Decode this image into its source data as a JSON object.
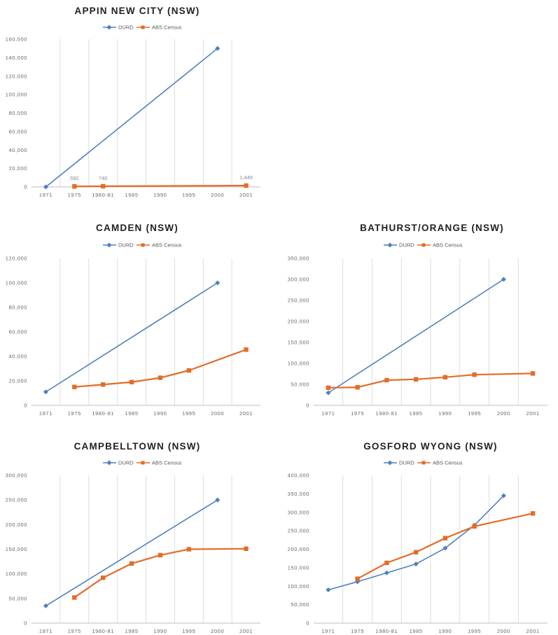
{
  "colors": {
    "durd": "#4f81bd",
    "abs": "#e46c28",
    "grid": "#d6d6d6",
    "axis": "#bfbfbf"
  },
  "chart_data": [
    {
      "type": "line",
      "title": "APPIN NEW CITY (NSW)",
      "categories": [
        "1971",
        "1975",
        "1980-81",
        "1985",
        "1990",
        "1995",
        "2000",
        "2001"
      ],
      "ylim": [
        0,
        160000
      ],
      "yticks": [
        "0",
        "20,000",
        "40,000",
        "60,000",
        "80,000",
        "100,000",
        "120,000",
        "140,000",
        "160,000"
      ],
      "legend": "top",
      "grid": "vertical",
      "series": [
        {
          "name": "DURD",
          "marker": "diamond",
          "values": [
            0,
            null,
            null,
            null,
            null,
            null,
            150000,
            null
          ]
        },
        {
          "name": "ABS Census",
          "marker": "square",
          "values": [
            null,
            592,
            740,
            null,
            null,
            null,
            null,
            1449
          ]
        }
      ],
      "data_labels": [
        {
          "series": 1,
          "index": 1,
          "text": "592"
        },
        {
          "series": 1,
          "index": 2,
          "text": "740"
        },
        {
          "series": 1,
          "index": 7,
          "text": "1,449"
        }
      ]
    },
    {
      "type": "line",
      "title": "CAMDEN (NSW)",
      "categories": [
        "1971",
        "1975",
        "1980-81",
        "1985",
        "1990",
        "1995",
        "2000",
        "2001"
      ],
      "ylim": [
        0,
        120000
      ],
      "yticks": [
        "0",
        "20,000",
        "40,000",
        "60,000",
        "80,000",
        "100,000",
        "120,000"
      ],
      "legend": "top",
      "grid": "vertical",
      "series": [
        {
          "name": "DURD",
          "marker": "diamond",
          "values": [
            11000,
            null,
            null,
            null,
            null,
            null,
            100000,
            null
          ]
        },
        {
          "name": "ABS Census",
          "marker": "square",
          "values": [
            null,
            15000,
            17000,
            19000,
            22500,
            28500,
            null,
            45500
          ]
        }
      ]
    },
    {
      "type": "line",
      "title": "BATHURST/ORANGE (NSW)",
      "categories": [
        "1971",
        "1975",
        "1980-81",
        "1985",
        "1990",
        "1995",
        "2000",
        "2001"
      ],
      "ylim": [
        0,
        350000
      ],
      "yticks": [
        "0",
        "50,000",
        "100,000",
        "150,000",
        "200,000",
        "250,000",
        "300,000",
        "350,000"
      ],
      "legend": "top",
      "grid": "vertical",
      "series": [
        {
          "name": "DURD",
          "marker": "diamond",
          "values": [
            30000,
            null,
            null,
            null,
            null,
            null,
            300000,
            null
          ]
        },
        {
          "name": "ABS Census",
          "marker": "square",
          "values": [
            42000,
            43000,
            60000,
            62000,
            67000,
            73000,
            null,
            76000
          ]
        }
      ]
    },
    {
      "type": "line",
      "title": "CAMPBELLTOWN (NSW)",
      "categories": [
        "1971",
        "1975",
        "1980-81",
        "1985",
        "1990",
        "1995",
        "2000",
        "2001"
      ],
      "ylim": [
        0,
        300000
      ],
      "yticks": [
        "0",
        "50,000",
        "100,000",
        "150,000",
        "200,000",
        "250,000",
        "300,000"
      ],
      "legend": "top",
      "grid": "vertical",
      "series": [
        {
          "name": "DURD",
          "marker": "diamond",
          "values": [
            35000,
            null,
            null,
            null,
            null,
            null,
            250000,
            null
          ]
        },
        {
          "name": "ABS Census",
          "marker": "square",
          "values": [
            null,
            52000,
            92000,
            121000,
            138000,
            150000,
            null,
            151000
          ]
        }
      ]
    },
    {
      "type": "line",
      "title": "GOSFORD WYONG (NSW)",
      "categories": [
        "1971",
        "1975",
        "1980-81",
        "1985",
        "1990",
        "1995",
        "2000",
        "2001"
      ],
      "ylim": [
        0,
        400000
      ],
      "yticks": [
        "0",
        "50,000",
        "100,000",
        "150,000",
        "200,000",
        "250,000",
        "300,000",
        "350,000",
        "400,000"
      ],
      "legend": "top",
      "grid": "vertical",
      "series": [
        {
          "name": "DURD",
          "marker": "diamond",
          "values": [
            90000,
            112000,
            136000,
            160000,
            203000,
            265000,
            345000,
            null
          ]
        },
        {
          "name": "ABS Census",
          "marker": "square",
          "values": [
            null,
            120000,
            163000,
            192000,
            230000,
            262000,
            null,
            297000
          ]
        }
      ]
    }
  ]
}
